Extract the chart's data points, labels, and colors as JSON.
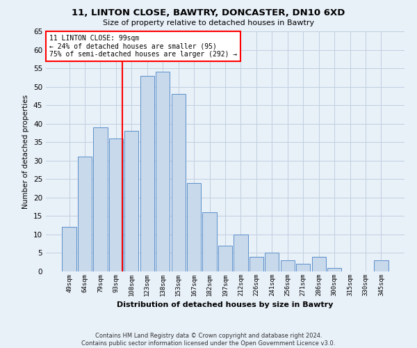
{
  "title1": "11, LINTON CLOSE, BAWTRY, DONCASTER, DN10 6XD",
  "title2": "Size of property relative to detached houses in Bawtry",
  "xlabel": "Distribution of detached houses by size in Bawtry",
  "ylabel": "Number of detached properties",
  "footnote1": "Contains HM Land Registry data © Crown copyright and database right 2024.",
  "footnote2": "Contains public sector information licensed under the Open Government Licence v3.0.",
  "bar_labels": [
    "49sqm",
    "64sqm",
    "79sqm",
    "93sqm",
    "108sqm",
    "123sqm",
    "138sqm",
    "153sqm",
    "167sqm",
    "182sqm",
    "197sqm",
    "212sqm",
    "226sqm",
    "241sqm",
    "256sqm",
    "271sqm",
    "286sqm",
    "300sqm",
    "315sqm",
    "330sqm",
    "345sqm"
  ],
  "bar_values": [
    12,
    31,
    39,
    36,
    38,
    53,
    54,
    48,
    24,
    16,
    7,
    10,
    4,
    5,
    3,
    2,
    4,
    1,
    0,
    0,
    3
  ],
  "bar_color": "#c9d9ec",
  "bar_edge_color": "#5b8fc9",
  "annotation_line1": "11 LINTON CLOSE: 99sqm",
  "annotation_line2": "← 24% of detached houses are smaller (95)",
  "annotation_line3": "75% of semi-detached houses are larger (292) →",
  "annotation_box_color": "white",
  "annotation_box_edge": "red",
  "red_line_color": "red",
  "red_line_x": 3.42,
  "ylim": [
    0,
    65
  ],
  "yticks": [
    0,
    5,
    10,
    15,
    20,
    25,
    30,
    35,
    40,
    45,
    50,
    55,
    60,
    65
  ],
  "grid_color": "#c0cfe0",
  "background_color": "#e8f0f8",
  "axes_background": "#e8f0f8",
  "title1_fontsize": 9.5,
  "title2_fontsize": 8,
  "xlabel_fontsize": 8,
  "ylabel_fontsize": 7.5,
  "xtick_fontsize": 6.5,
  "ytick_fontsize": 7.5,
  "annotation_fontsize": 7,
  "footnote_fontsize": 6
}
